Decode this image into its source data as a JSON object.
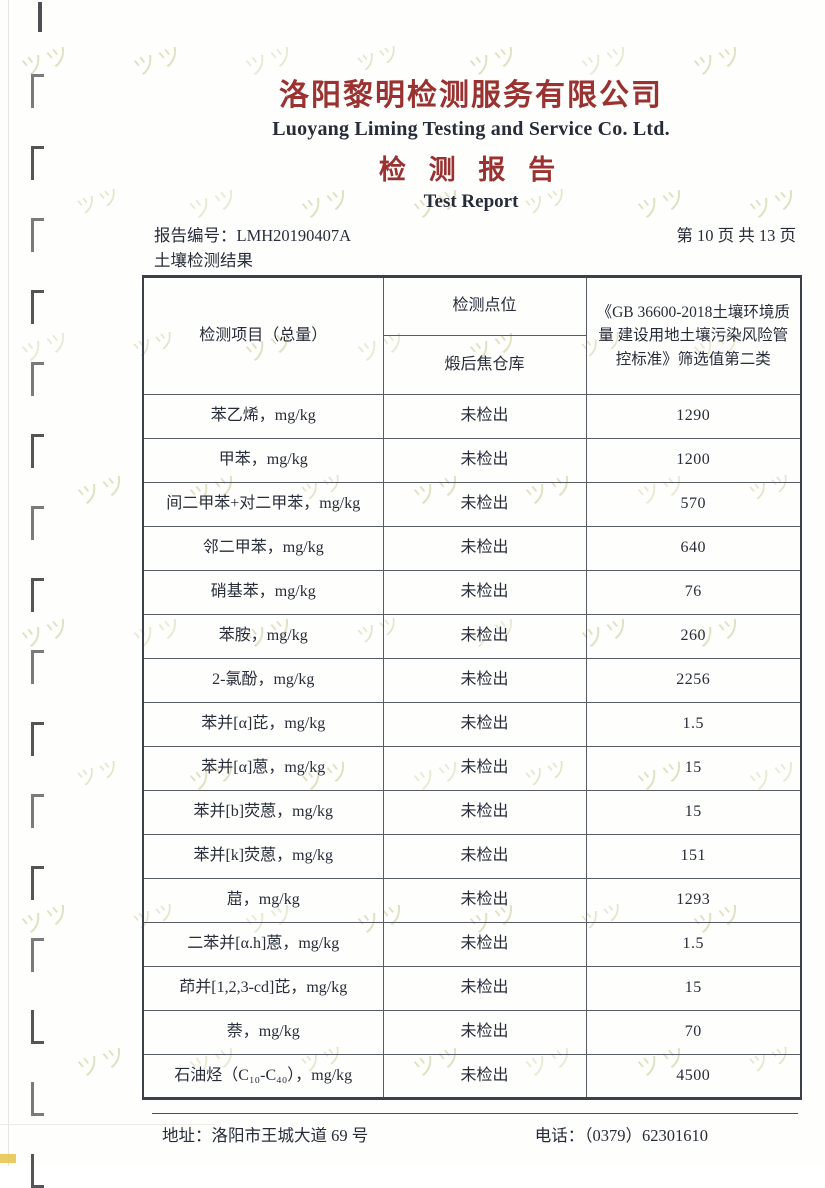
{
  "header": {
    "company_cn": "洛阳黎明检测服务有限公司",
    "company_en": "Luoyang Liming Testing and Service Co. Ltd.",
    "title_cn": "检 测 报 告",
    "title_en": "Test Report",
    "report_no_label": "报告编号：",
    "report_no": "LMH20190407A",
    "page_info": "第 10 页 共 13 页",
    "section_title": "土壤检测结果"
  },
  "table": {
    "col_item_header": "检测项目（总量）",
    "col_point_header": "检测点位",
    "col_point_value": "煅后焦仓库",
    "col_standard_header": "《GB 36600-2018土壤环境质量 建设用地土壤污染风险管控标准》筛选值第二类",
    "rows": [
      {
        "item": "苯乙烯，mg/kg",
        "result": "未检出",
        "limit": "1290"
      },
      {
        "item": "甲苯，mg/kg",
        "result": "未检出",
        "limit": "1200"
      },
      {
        "item": "间二甲苯+对二甲苯，mg/kg",
        "result": "未检出",
        "limit": "570"
      },
      {
        "item": "邻二甲苯，mg/kg",
        "result": "未检出",
        "limit": "640"
      },
      {
        "item": "硝基苯，mg/kg",
        "result": "未检出",
        "limit": "76"
      },
      {
        "item": "苯胺，mg/kg",
        "result": "未检出",
        "limit": "260"
      },
      {
        "item": "2-氯酚，mg/kg",
        "result": "未检出",
        "limit": "2256"
      },
      {
        "item": "苯并[α]芘，mg/kg",
        "result": "未检出",
        "limit": "1.5"
      },
      {
        "item": "苯并[α]蒽，mg/kg",
        "result": "未检出",
        "limit": "15"
      },
      {
        "item": "苯并[b]荧蒽，mg/kg",
        "result": "未检出",
        "limit": "15"
      },
      {
        "item": "苯并[k]荧蒽，mg/kg",
        "result": "未检出",
        "limit": "151"
      },
      {
        "item": "䓛，mg/kg",
        "result": "未检出",
        "limit": "1293"
      },
      {
        "item": "二苯并[α.h]蒽，mg/kg",
        "result": "未检出",
        "limit": "1.5"
      },
      {
        "item": "茚并[1,2,3-cd]芘，mg/kg",
        "result": "未检出",
        "limit": "15"
      },
      {
        "item": "萘，mg/kg",
        "result": "未检出",
        "limit": "70"
      },
      {
        "item": "石油烃（C₁₀-C₄₀），mg/kg",
        "result": "未检出",
        "limit": "4500"
      }
    ]
  },
  "footer": {
    "address_label": "地址：",
    "address": "洛阳市王城大道 69 号",
    "phone_label": "电话：",
    "phone": "（0379）62301610"
  },
  "watermark": {
    "glyph": "ツ"
  },
  "colors": {
    "title_red": "#993231",
    "body_ink": "#272c39",
    "watermark_olive": "#c6cb93"
  }
}
